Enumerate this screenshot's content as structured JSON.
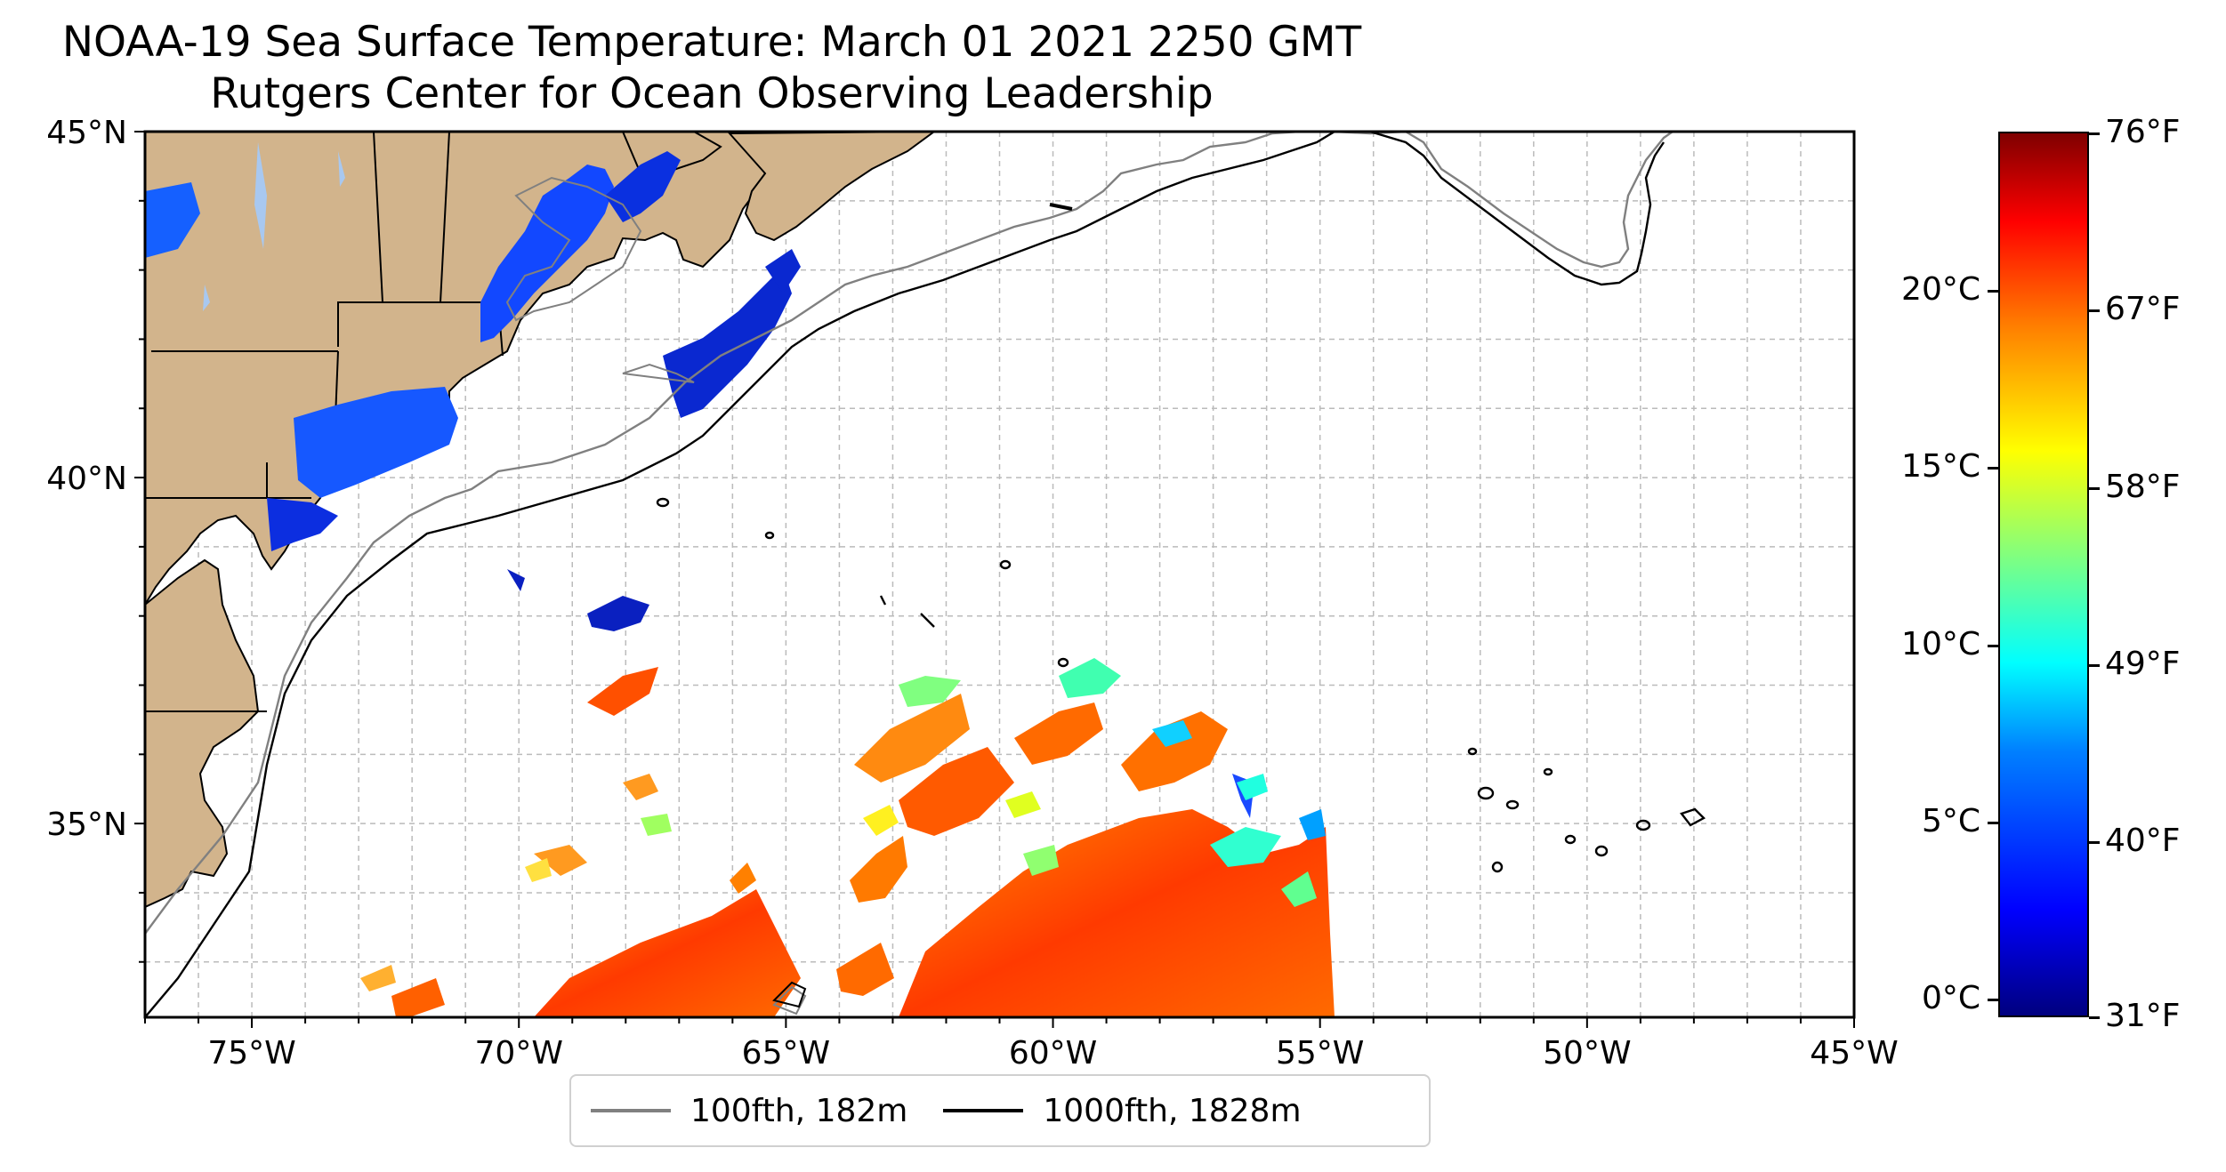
{
  "title": "NOAA-19 Sea Surface Temperature: March 01 2021 2250 GMT",
  "subtitle": "Rutgers Center for Ocean Observing Leadership",
  "map": {
    "lon_range": [
      -77,
      -45
    ],
    "lat_range": [
      32.2,
      45
    ],
    "lon_ticks": [
      "75°W",
      "70°W",
      "65°W",
      "60°W",
      "55°W",
      "50°W",
      "45°W"
    ],
    "lon_tick_values": [
      -75,
      -70,
      -65,
      -60,
      -55,
      -50,
      -45
    ],
    "lat_ticks": [
      "45°N",
      "40°N",
      "35°N"
    ],
    "lat_tick_values": [
      45,
      40,
      35
    ],
    "gridlines": "dashed gray, every 1°",
    "land_color": "#d2b48c",
    "lake_color": "#a8c8f0"
  },
  "legend": {
    "placement": "bottom-center",
    "items": [
      {
        "label": "100fth, 182m",
        "color": "#808080"
      },
      {
        "label": "1000fth, 1828m",
        "color": "#000000"
      }
    ]
  },
  "colorbar": {
    "colormap": "jet",
    "range_c": [
      -0.5,
      24.5
    ],
    "celsius_ticks": [
      "0°C",
      "5°C",
      "10°C",
      "15°C",
      "20°C"
    ],
    "celsius_values": [
      0,
      5,
      10,
      15,
      20
    ],
    "fahrenheit_ticks": [
      "31°F",
      "40°F",
      "49°F",
      "58°F",
      "67°F",
      "76°F"
    ],
    "fahrenheit_values": [
      31,
      40,
      49,
      58,
      67,
      76
    ]
  }
}
